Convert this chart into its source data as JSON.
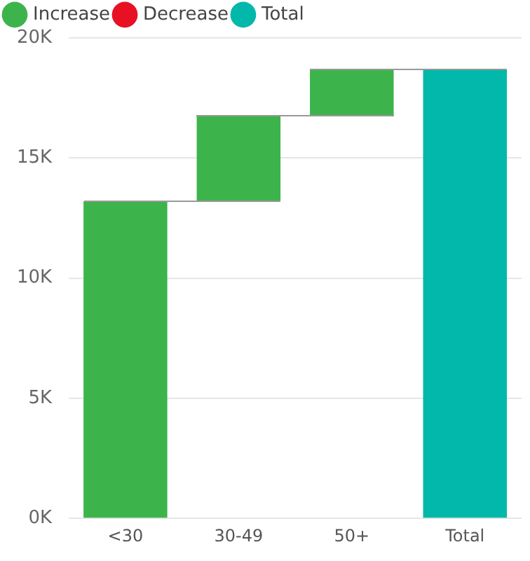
{
  "chart_data": {
    "type": "bar",
    "categories": [
      "<30",
      "30-49",
      "50+",
      "Total"
    ],
    "series": [
      {
        "name": "Increase",
        "color": "#3cb44b",
        "values": [
          13200,
          3550,
          1950,
          null
        ],
        "base": [
          0,
          13200,
          16750,
          null
        ]
      },
      {
        "name": "Decrease",
        "color": "#e81123",
        "values": [
          null,
          null,
          null,
          null
        ],
        "base": [
          null,
          null,
          null,
          null
        ]
      },
      {
        "name": "Total",
        "color": "#01b8aa",
        "values": [
          null,
          null,
          null,
          18700
        ],
        "base": [
          null,
          null,
          null,
          0
        ]
      }
    ],
    "ylim": [
      0,
      20000
    ],
    "yticks": [
      {
        "value": 0,
        "label": "0K"
      },
      {
        "value": 5000,
        "label": "5K"
      },
      {
        "value": 10000,
        "label": "10K"
      },
      {
        "value": 15000,
        "label": "15K"
      },
      {
        "value": 20000,
        "label": "20K"
      }
    ],
    "grid": "y",
    "legend": "top left"
  }
}
